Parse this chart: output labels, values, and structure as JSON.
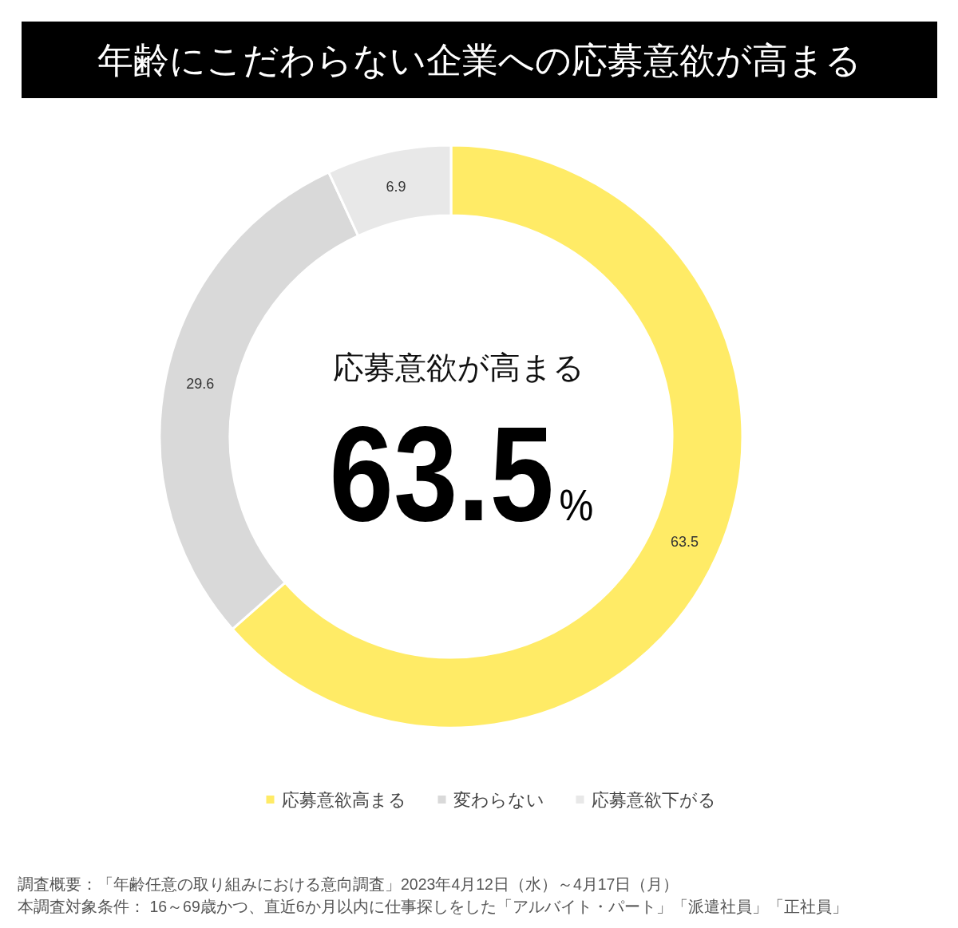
{
  "chart_data": {
    "type": "donut",
    "title": "年齢にこだわらない企業への応募意欲が高まる",
    "categories": [
      "応募意欲高まる",
      "変わらない",
      "応募意欲下がる"
    ],
    "values": [
      63.5,
      29.6,
      6.9
    ],
    "colors": [
      "#ffeb66",
      "#d9d9d9",
      "#e8e8e8"
    ],
    "data_labels": true,
    "legend": "bottom",
    "annotations": [
      "応募意欲が高まる",
      "63.5%",
      "調査概要：「年齢任意の取り組みにおける意向調査」2023年4月12日（水）～4月17日（月）",
      "本調査対象条件： 16～69歳かつ、直近6か月以内に仕事探しをした「アルバイト・パート」「派遣社員」「正社員」"
    ]
  }
}
